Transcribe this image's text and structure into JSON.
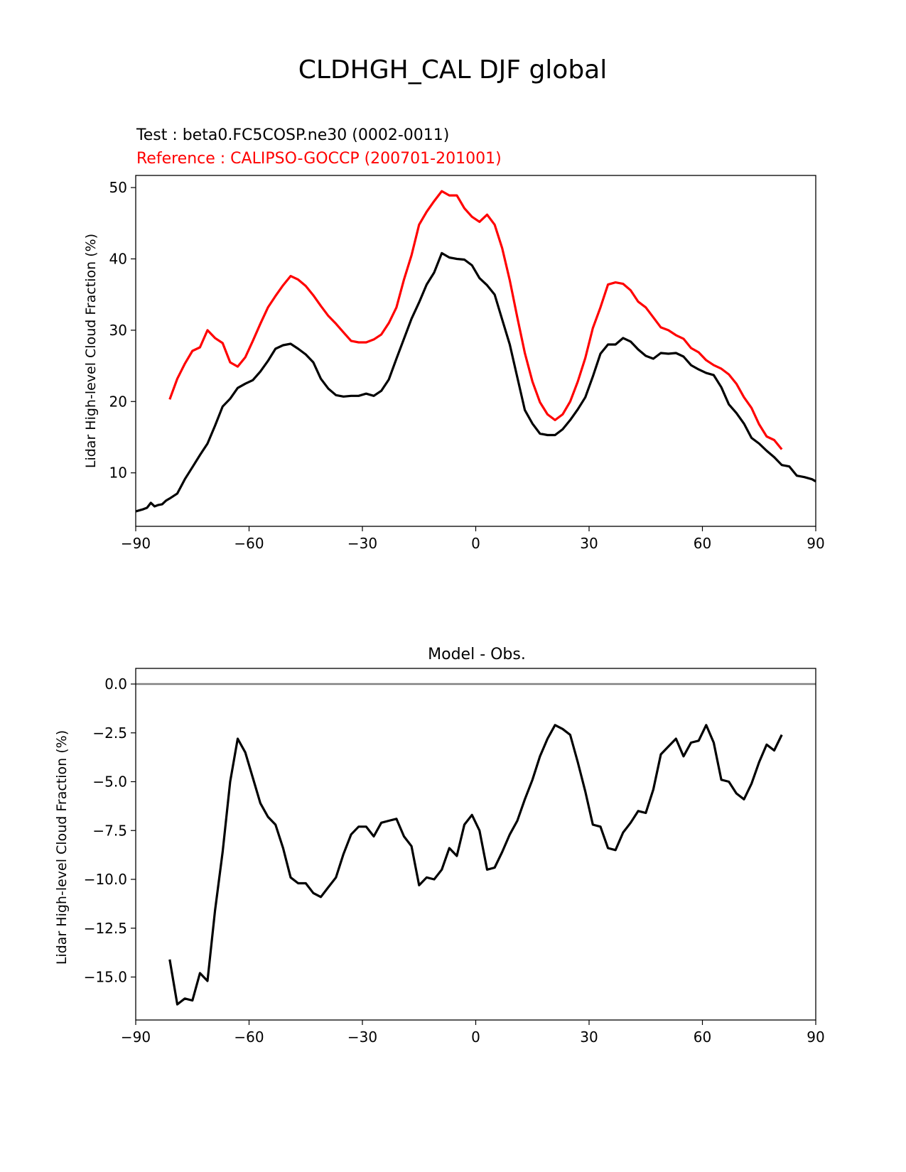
{
  "figure": {
    "suptitle": "CLDHGH_CAL DJF global",
    "background": "#ffffff"
  },
  "chart_data": [
    {
      "type": "line",
      "title_test": "Test : beta0.FC5COSP.ne30 (0002-0011)",
      "title_reference": "Reference : CALIPSO-GOCCP (200701-201001)",
      "title_test_color": "#000000",
      "title_reference_color": "#ff0000",
      "xlabel": "",
      "ylabel": "Lidar High-level Cloud Fraction (%)",
      "xlim": [
        -90,
        90
      ],
      "ylim": [
        2.5,
        51.7
      ],
      "xticks": [
        -90,
        -60,
        -30,
        0,
        30,
        60,
        90
      ],
      "xtick_labels": [
        "−90",
        "−60",
        "−30",
        "0",
        "30",
        "60",
        "90"
      ],
      "yticks": [
        10,
        20,
        30,
        40,
        50
      ],
      "ytick_labels": [
        "10",
        "20",
        "30",
        "40",
        "50"
      ],
      "grid": false,
      "series": [
        {
          "color": "#ff0000",
          "x": [
            -81,
            -79,
            -77,
            -75,
            -73,
            -71,
            -69,
            -67,
            -65,
            -63,
            -61,
            -59,
            -57,
            -55,
            -53,
            -51,
            -49,
            -47,
            -45,
            -43,
            -41,
            -39,
            -37,
            -35,
            -33,
            -31,
            -29,
            -27,
            -25,
            -23,
            -21,
            -19,
            -17,
            -15,
            -13,
            -11,
            -9,
            -7,
            -5,
            -3,
            -1,
            1,
            3,
            5,
            7,
            9,
            11,
            13,
            15,
            17,
            19,
            21,
            23,
            25,
            27,
            29,
            31,
            33,
            35,
            37,
            39,
            41,
            43,
            45,
            47,
            49,
            51,
            53,
            55,
            57,
            59,
            61,
            63,
            65,
            67,
            69,
            71,
            73,
            75,
            77,
            79,
            81
          ],
          "values": [
            20.3,
            23.2,
            25.3,
            27.1,
            27.6,
            30.0,
            28.9,
            28.2,
            25.5,
            24.9,
            26.2,
            28.5,
            30.9,
            33.2,
            34.8,
            36.3,
            37.6,
            37.1,
            36.2,
            34.9,
            33.4,
            32.0,
            30.9,
            29.7,
            28.5,
            28.3,
            28.3,
            28.7,
            29.4,
            31.0,
            33.2,
            37.1,
            40.5,
            44.8,
            46.6,
            48.1,
            49.5,
            48.9,
            48.9,
            47.1,
            45.9,
            45.2,
            46.2,
            44.8,
            41.5,
            37.0,
            31.8,
            26.8,
            22.8,
            19.9,
            18.2,
            17.4,
            18.2,
            20.0,
            22.8,
            26.1,
            30.3,
            33.2,
            36.4,
            36.7,
            36.5,
            35.6,
            34.0,
            33.2,
            31.8,
            30.4,
            30.0,
            29.3,
            28.8,
            27.5,
            26.9,
            25.8,
            25.1,
            24.6,
            23.8,
            22.5,
            20.6,
            19.1,
            16.8,
            15.1,
            14.6,
            13.3
          ]
        },
        {
          "color": "#000000",
          "x": [
            -90,
            -88,
            -87,
            -86,
            -85,
            -84,
            -83,
            -82,
            -81,
            -79,
            -77,
            -75,
            -73,
            -71,
            -69,
            -67,
            -65,
            -63,
            -61,
            -59,
            -57,
            -55,
            -53,
            -51,
            -49,
            -47,
            -45,
            -43,
            -41,
            -39,
            -37,
            -35,
            -33,
            -31,
            -29,
            -27,
            -25,
            -23,
            -21,
            -19,
            -17,
            -15,
            -13,
            -11,
            -9,
            -7,
            -5,
            -3,
            -1,
            1,
            3,
            5,
            7,
            9,
            11,
            13,
            15,
            17,
            19,
            21,
            23,
            25,
            27,
            29,
            31,
            33,
            35,
            37,
            39,
            41,
            43,
            45,
            47,
            49,
            51,
            53,
            55,
            57,
            59,
            61,
            63,
            65,
            67,
            69,
            71,
            73,
            75,
            77,
            79,
            81,
            83,
            85,
            87,
            89,
            90
          ],
          "values": [
            4.6,
            4.9,
            5.1,
            5.8,
            5.3,
            5.5,
            5.6,
            6.1,
            6.4,
            7.1,
            9.1,
            10.8,
            12.5,
            14.1,
            16.6,
            19.3,
            20.4,
            21.9,
            22.5,
            23.0,
            24.2,
            25.7,
            27.4,
            27.9,
            28.1,
            27.4,
            26.6,
            25.5,
            23.2,
            21.8,
            20.9,
            20.7,
            20.8,
            20.8,
            21.1,
            20.8,
            21.5,
            23.1,
            26.0,
            28.8,
            31.6,
            33.9,
            36.4,
            38.1,
            40.8,
            40.2,
            40.0,
            39.9,
            39.1,
            37.3,
            36.3,
            35.0,
            31.5,
            28.0,
            23.4,
            18.8,
            16.9,
            15.5,
            15.3,
            15.3,
            16.1,
            17.4,
            18.9,
            20.6,
            23.5,
            26.7,
            28.0,
            28.0,
            28.9,
            28.4,
            27.3,
            26.4,
            26.0,
            26.8,
            26.7,
            26.8,
            26.3,
            25.1,
            24.5,
            24.0,
            23.7,
            22.0,
            19.6,
            18.4,
            16.9,
            14.9,
            14.1,
            13.1,
            12.2,
            11.1,
            10.9,
            9.6,
            9.4,
            9.1,
            8.8
          ]
        }
      ]
    },
    {
      "type": "line",
      "title": "Model - Obs.",
      "xlabel": "",
      "ylabel": "Lidar High-level Cloud Fraction (%)",
      "xlim": [
        -90,
        90
      ],
      "ylim": [
        -17.2,
        0.8
      ],
      "xticks": [
        -90,
        -60,
        -30,
        0,
        30,
        60,
        90
      ],
      "xtick_labels": [
        "−90",
        "−60",
        "−30",
        "0",
        "30",
        "60",
        "90"
      ],
      "yticks": [
        0,
        -2.5,
        -5,
        -7.5,
        -10,
        -12.5,
        -15
      ],
      "ytick_labels": [
        "0.0",
        "−2.5",
        "−5.0",
        "−7.5",
        "−10.0",
        "−12.5",
        "−15.0"
      ],
      "grid": false,
      "zero_line": {
        "value": 0,
        "color": "#808080"
      },
      "series": [
        {
          "color": "#000000",
          "x": [
            -81,
            -79,
            -77,
            -75,
            -73,
            -71,
            -69,
            -67,
            -65,
            -63,
            -61,
            -59,
            -57,
            -55,
            -53,
            -51,
            -49,
            -47,
            -45,
            -43,
            -41,
            -39,
            -37,
            -35,
            -33,
            -31,
            -29,
            -27,
            -25,
            -23,
            -21,
            -19,
            -17,
            -15,
            -13,
            -11,
            -9,
            -7,
            -5,
            -3,
            -1,
            1,
            3,
            5,
            7,
            9,
            11,
            13,
            15,
            17,
            19,
            21,
            23,
            25,
            27,
            29,
            31,
            33,
            35,
            37,
            39,
            41,
            43,
            45,
            47,
            49,
            51,
            53,
            55,
            57,
            59,
            61,
            63,
            65,
            67,
            69,
            71,
            73,
            75,
            77,
            79,
            81
          ],
          "values": [
            -14.1,
            -16.4,
            -16.1,
            -16.2,
            -14.8,
            -15.2,
            -11.6,
            -8.6,
            -5.0,
            -2.8,
            -3.5,
            -4.8,
            -6.1,
            -6.8,
            -7.2,
            -8.4,
            -9.9,
            -10.2,
            -10.2,
            -10.7,
            -10.9,
            -10.4,
            -9.9,
            -8.7,
            -7.7,
            -7.3,
            -7.3,
            -7.8,
            -7.1,
            -7.0,
            -6.9,
            -7.8,
            -8.3,
            -10.3,
            -9.9,
            -10.0,
            -9.5,
            -8.4,
            -8.8,
            -7.2,
            -6.7,
            -7.5,
            -9.5,
            -9.4,
            -8.6,
            -7.7,
            -7.0,
            -5.9,
            -4.9,
            -3.7,
            -2.8,
            -2.1,
            -2.3,
            -2.6,
            -4.0,
            -5.5,
            -7.2,
            -7.3,
            -8.4,
            -8.5,
            -7.6,
            -7.1,
            -6.5,
            -6.6,
            -5.4,
            -3.6,
            -3.2,
            -2.8,
            -3.7,
            -3.0,
            -2.9,
            -2.1,
            -3.0,
            -4.9,
            -5.0,
            -5.6,
            -5.9,
            -5.1,
            -4.0,
            -3.1,
            -3.4,
            -2.6
          ]
        }
      ]
    }
  ]
}
